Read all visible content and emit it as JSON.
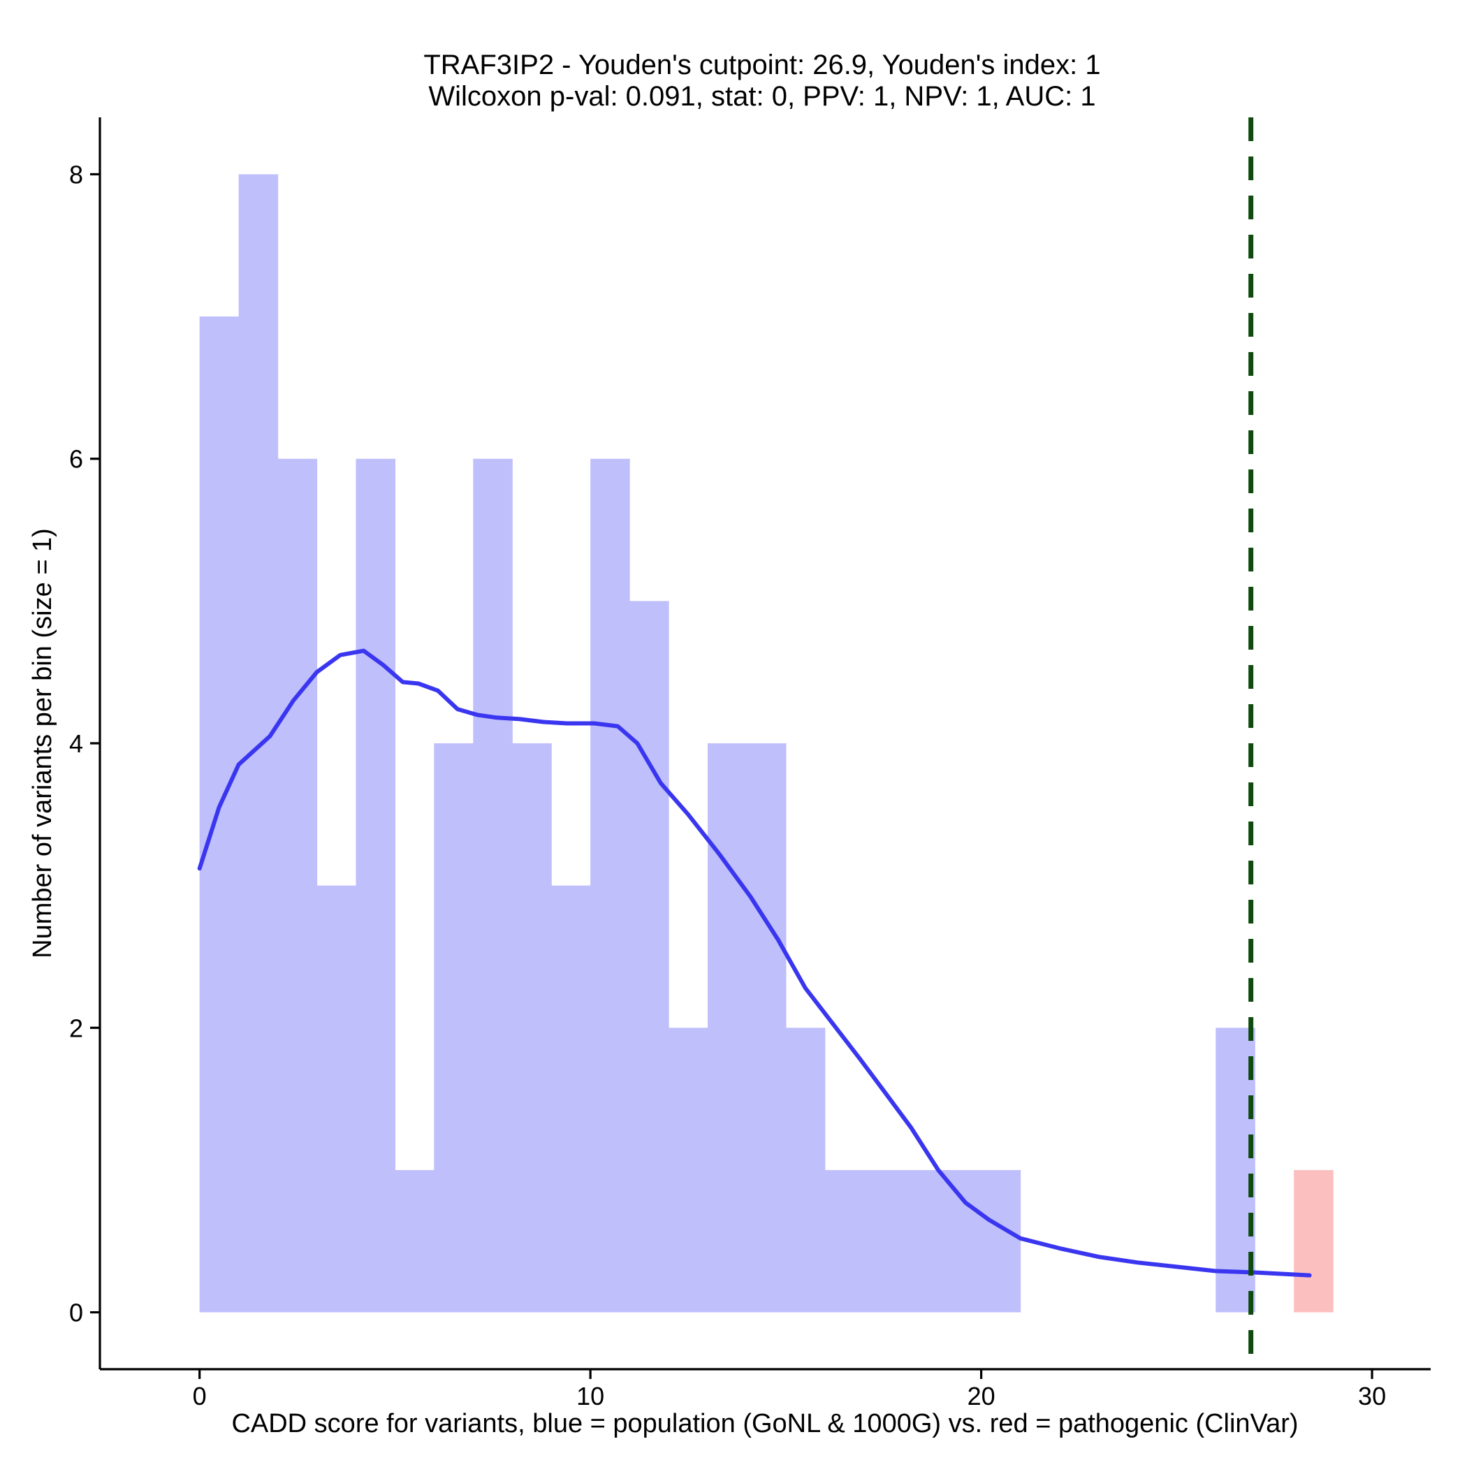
{
  "chart_data": {
    "type": "histogram",
    "title_lines": [
      "TRAF3IP2 - Youden's cutpoint: 26.9, Youden's index: 1",
      "Wilcoxon p-val: 0.091, stat: 0, PPV: 1, NPV: 1, AUC: 1"
    ],
    "xlabel": "CADD score for variants, blue = population (GoNL & 1000G) vs. red = pathogenic (ClinVar)",
    "ylabel": "Number of variants per bin (size = 1)",
    "xlim": [
      -2.55,
      31.5
    ],
    "ylim": [
      -0.4,
      8.4
    ],
    "x_ticks": [
      0,
      10,
      20,
      30
    ],
    "y_ticks": [
      0,
      2,
      4,
      6,
      8
    ],
    "bin_width": 1,
    "series": [
      {
        "name": "population",
        "color": "#bfbffc",
        "bins": [
          {
            "x0": 0,
            "count": 7
          },
          {
            "x0": 1,
            "count": 8
          },
          {
            "x0": 2,
            "count": 6
          },
          {
            "x0": 3,
            "count": 3
          },
          {
            "x0": 4,
            "count": 6
          },
          {
            "x0": 5,
            "count": 1
          },
          {
            "x0": 6,
            "count": 4
          },
          {
            "x0": 7,
            "count": 6
          },
          {
            "x0": 8,
            "count": 4
          },
          {
            "x0": 9,
            "count": 3
          },
          {
            "x0": 10,
            "count": 6
          },
          {
            "x0": 11,
            "count": 5
          },
          {
            "x0": 12,
            "count": 2
          },
          {
            "x0": 13,
            "count": 4
          },
          {
            "x0": 14,
            "count": 4
          },
          {
            "x0": 15,
            "count": 2
          },
          {
            "x0": 16,
            "count": 1
          },
          {
            "x0": 17,
            "count": 1
          },
          {
            "x0": 18,
            "count": 1
          },
          {
            "x0": 19,
            "count": 1
          },
          {
            "x0": 20,
            "count": 1
          },
          {
            "x0": 26,
            "count": 2
          }
        ]
      },
      {
        "name": "pathogenic",
        "color": "#fcbfbf",
        "bins": [
          {
            "x0": 28,
            "count": 1
          }
        ]
      }
    ],
    "density_curve": {
      "color": "#3a36f0",
      "points": [
        [
          0,
          3.12
        ],
        [
          0.5,
          3.55
        ],
        [
          1,
          3.85
        ],
        [
          1.8,
          4.05
        ],
        [
          2.4,
          4.3
        ],
        [
          3,
          4.5
        ],
        [
          3.6,
          4.62
        ],
        [
          4.2,
          4.65
        ],
        [
          4.7,
          4.55
        ],
        [
          5.2,
          4.43
        ],
        [
          5.6,
          4.42
        ],
        [
          6.1,
          4.37
        ],
        [
          6.6,
          4.24
        ],
        [
          7.1,
          4.2
        ],
        [
          7.6,
          4.18
        ],
        [
          8.2,
          4.17
        ],
        [
          8.8,
          4.15
        ],
        [
          9.4,
          4.14
        ],
        [
          10.1,
          4.14
        ],
        [
          10.7,
          4.12
        ],
        [
          11.2,
          4.0
        ],
        [
          11.8,
          3.72
        ],
        [
          12.5,
          3.5
        ],
        [
          13.3,
          3.22
        ],
        [
          14.1,
          2.92
        ],
        [
          14.8,
          2.62
        ],
        [
          15.5,
          2.28
        ],
        [
          16.2,
          2.03
        ],
        [
          16.9,
          1.78
        ],
        [
          17.5,
          1.56
        ],
        [
          18.2,
          1.3
        ],
        [
          18.9,
          1.0
        ],
        [
          19.6,
          0.77
        ],
        [
          20.2,
          0.65
        ],
        [
          21,
          0.52
        ],
        [
          22,
          0.45
        ],
        [
          23,
          0.39
        ],
        [
          24,
          0.35
        ],
        [
          25,
          0.32
        ],
        [
          26,
          0.29
        ],
        [
          27,
          0.28
        ],
        [
          28.4,
          0.26
        ]
      ]
    },
    "cutpoint": {
      "x": 26.9,
      "color": "#0f4a0f",
      "style": "dashed"
    }
  }
}
